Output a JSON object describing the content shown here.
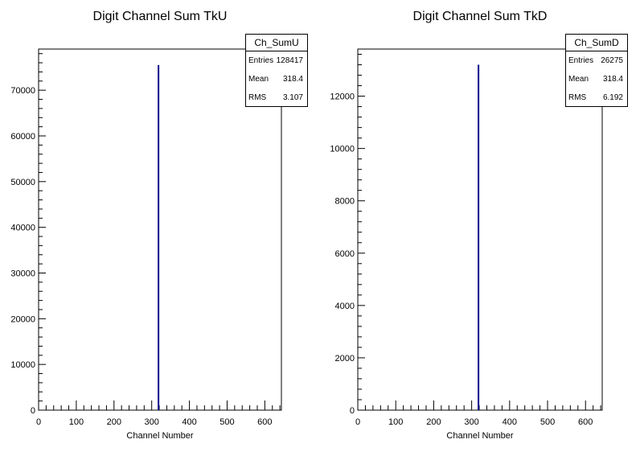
{
  "chart_data": [
    {
      "type": "bar",
      "title": "Digit Channel Sum TkU",
      "xlabel": "Channel Number",
      "ylabel": "",
      "xlim": [
        0,
        644
      ],
      "ylim": [
        0,
        79000
      ],
      "xticks": [
        0,
        100,
        200,
        300,
        400,
        500,
        600
      ],
      "yticks": [
        0,
        10000,
        20000,
        30000,
        40000,
        50000,
        60000,
        70000
      ],
      "xtick_labels": [
        "0",
        "100",
        "200",
        "300",
        "400",
        "500",
        "600"
      ],
      "ytick_labels": [
        "0",
        "10000",
        "20000",
        "30000",
        "40000",
        "50000",
        "60000",
        "70000"
      ],
      "bins": [
        {
          "x": 318,
          "value": 75500
        }
      ],
      "color": "#00008b",
      "stats": {
        "name": "Ch_SumU",
        "rows": [
          {
            "label": "Entries",
            "value": "128417"
          },
          {
            "label": "Mean",
            "value": "318.4"
          },
          {
            "label": "RMS",
            "value": "3.107"
          }
        ]
      }
    },
    {
      "type": "bar",
      "title": "Digit Channel Sum TkD",
      "xlabel": "Channel Number",
      "ylabel": "",
      "xlim": [
        0,
        644
      ],
      "ylim": [
        0,
        13800
      ],
      "xticks": [
        0,
        100,
        200,
        300,
        400,
        500,
        600
      ],
      "yticks": [
        0,
        2000,
        4000,
        6000,
        8000,
        10000,
        12000
      ],
      "xtick_labels": [
        "0",
        "100",
        "200",
        "300",
        "400",
        "500",
        "600"
      ],
      "ytick_labels": [
        "0",
        "2000",
        "4000",
        "6000",
        "8000",
        "10000",
        "12000"
      ],
      "bins": [
        {
          "x": 318,
          "value": 13200
        }
      ],
      "color": "#00008b",
      "stats": {
        "name": "Ch_SumD",
        "rows": [
          {
            "label": "Entries",
            "value": "26275"
          },
          {
            "label": "Mean",
            "value": "318.4"
          },
          {
            "label": "RMS",
            "value": "6.192"
          }
        ]
      }
    }
  ]
}
